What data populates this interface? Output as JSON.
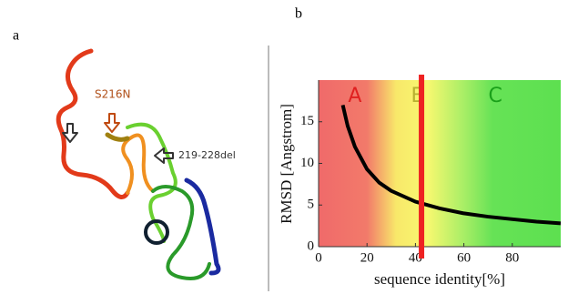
{
  "panels": {
    "a": "a",
    "b": "b"
  },
  "structure": {
    "labels": [
      "S216N",
      "219-228del"
    ]
  },
  "chart_data": {
    "type": "line",
    "x_label": "sequence identity[%]",
    "y_label": "RMSD [Angstrom]",
    "x": [
      10,
      12,
      15,
      20,
      25,
      30,
      40,
      50,
      60,
      70,
      80,
      90,
      100
    ],
    "series": [
      {
        "color": "#000000",
        "values": [
          17,
          14.5,
          12,
          9.3,
          7.7,
          6.7,
          5.4,
          4.6,
          4.0,
          3.6,
          3.3,
          3.0,
          2.8
        ]
      }
    ],
    "regions": [
      "A",
      "B",
      "C"
    ],
    "threshold": {
      "x": 42.5,
      "color": "#ee2222"
    },
    "xlim": [
      0,
      100
    ],
    "xticks": [
      0,
      20,
      40,
      60,
      80
    ],
    "ylim": [
      0,
      20
    ],
    "yticks": [
      0,
      5,
      10,
      15
    ]
  }
}
